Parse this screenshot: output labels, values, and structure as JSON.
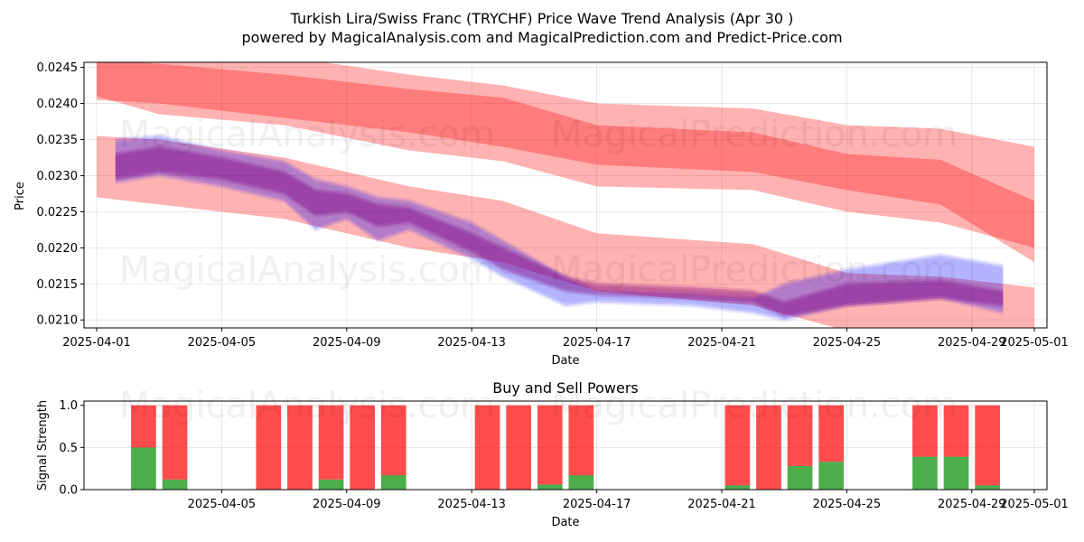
{
  "figure": {
    "title_line1": "Turkish Lira/Swiss Franc (TRYCHF) Price Wave Trend Analysis (Apr 30 )",
    "title_line2": "powered by MagicalAnalysis.com and MagicalPrediction.com and Predict-Price.com",
    "watermarks": [
      "MagicalAnalysis.com",
      "MagicalPrediction.com"
    ]
  },
  "colors": {
    "predicted_band": "#ff0000",
    "blue_band": "#0000ff",
    "purple_band": "#800080",
    "buy": "#2ca02c",
    "sell": "#ff0000",
    "grid": "#b0b0b0"
  },
  "chart_data": [
    {
      "type": "area",
      "title": "",
      "xlabel": "Date",
      "ylabel": "Price",
      "xlim": [
        "2025-03-31",
        "2025-05-01"
      ],
      "ylim": [
        0.02089,
        0.02457
      ],
      "grid": true,
      "x_ticks": [
        "2025-04-01",
        "2025-04-05",
        "2025-04-09",
        "2025-04-13",
        "2025-04-17",
        "2025-04-21",
        "2025-04-25",
        "2025-04-29",
        "2025-05-01"
      ],
      "y_ticks": [
        "0.0210",
        "0.0215",
        "0.0220",
        "0.0225",
        "0.0230",
        "0.0235",
        "0.0240",
        "0.0245"
      ],
      "bands": [
        {
          "color": "red",
          "opacity": 0.3,
          "x": [
            "2025-04-01",
            "2025-04-03",
            "2025-04-07",
            "2025-04-11",
            "2025-04-14",
            "2025-04-17",
            "2025-04-22",
            "2025-04-25",
            "2025-04-28",
            "2025-05-01"
          ],
          "upper": [
            0.02355,
            0.0235,
            0.02325,
            0.02285,
            0.02265,
            0.0222,
            0.02205,
            0.02165,
            0.0216,
            0.02145
          ],
          "lower": [
            0.0227,
            0.0226,
            0.0224,
            0.022,
            0.0218,
            0.0214,
            0.0212,
            0.02085,
            0.02075,
            0.0206
          ]
        },
        {
          "color": "red",
          "opacity": 0.3,
          "x": [
            "2025-04-01",
            "2025-04-03",
            "2025-04-07",
            "2025-04-11",
            "2025-04-14",
            "2025-04-17",
            "2025-04-22",
            "2025-04-25",
            "2025-04-28",
            "2025-05-01"
          ],
          "upper": [
            0.02485,
            0.0248,
            0.02465,
            0.0244,
            0.02425,
            0.024,
            0.02393,
            0.0237,
            0.02365,
            0.0234
          ],
          "lower": [
            0.02405,
            0.024,
            0.0238,
            0.0236,
            0.0234,
            0.02315,
            0.02305,
            0.0228,
            0.0226,
            0.0218
          ]
        },
        {
          "color": "red",
          "opacity": 0.3,
          "x": [
            "2025-04-01",
            "2025-04-03",
            "2025-04-07",
            "2025-04-11",
            "2025-04-14",
            "2025-04-17",
            "2025-04-22",
            "2025-04-25",
            "2025-04-28",
            "2025-05-01"
          ],
          "upper": [
            0.0246,
            0.02455,
            0.0244,
            0.0242,
            0.02408,
            0.0237,
            0.0236,
            0.0233,
            0.02322,
            0.02265
          ],
          "lower": [
            0.0241,
            0.02385,
            0.0237,
            0.02335,
            0.0232,
            0.02285,
            0.0228,
            0.0225,
            0.02235,
            0.022
          ]
        },
        {
          "color": "blue",
          "opacity": 0.15,
          "x": [
            "2025-04-01.6",
            "2025-04-03",
            "2025-04-05",
            "2025-04-07",
            "2025-04-08",
            "2025-04-09",
            "2025-04-10",
            "2025-04-11",
            "2025-04-13",
            "2025-04-14",
            "2025-04-16",
            "2025-04-17",
            "2025-04-20",
            "2025-04-22",
            "2025-04-23",
            "2025-04-25",
            "2025-04-28",
            "2025-04-30"
          ],
          "upper": [
            0.0235,
            0.02355,
            0.02335,
            0.0232,
            0.02295,
            0.02285,
            0.0227,
            0.02265,
            0.02235,
            0.0221,
            0.0216,
            0.0214,
            0.02135,
            0.0213,
            0.0215,
            0.0217,
            0.0219,
            0.02175
          ],
          "lower": [
            0.0229,
            0.023,
            0.02285,
            0.02265,
            0.02225,
            0.0224,
            0.0221,
            0.02225,
            0.02185,
            0.0216,
            0.0212,
            0.02125,
            0.0212,
            0.0211,
            0.021,
            0.0212,
            0.0213,
            0.0211
          ]
        },
        {
          "color": "purple",
          "opacity": 0.25,
          "x": [
            "2025-04-01.6",
            "2025-04-03",
            "2025-04-05",
            "2025-04-07",
            "2025-04-08",
            "2025-04-09",
            "2025-04-10",
            "2025-04-11",
            "2025-04-13",
            "2025-04-14",
            "2025-04-16",
            "2025-04-17",
            "2025-04-20",
            "2025-04-22",
            "2025-04-23",
            "2025-04-25",
            "2025-04-28",
            "2025-04-30"
          ],
          "upper": [
            0.0233,
            0.0234,
            0.02325,
            0.02305,
            0.0228,
            0.02275,
            0.0226,
            0.02255,
            0.0222,
            0.022,
            0.0216,
            0.0215,
            0.02145,
            0.0214,
            0.02125,
            0.0215,
            0.02155,
            0.0214
          ],
          "lower": [
            0.02295,
            0.02305,
            0.02295,
            0.02275,
            0.02245,
            0.0225,
            0.0223,
            0.02235,
            0.02195,
            0.0217,
            0.0214,
            0.02135,
            0.0213,
            0.02125,
            0.02105,
            0.0212,
            0.0213,
            0.0212
          ]
        }
      ]
    },
    {
      "type": "bar",
      "title": "Buy and Sell Powers",
      "xlabel": "Date",
      "ylabel": "Signal Strength",
      "xlim": [
        "2025-03-31",
        "2025-05-01"
      ],
      "ylim": [
        0,
        1.05
      ],
      "grid": true,
      "x_ticks": [
        "2025-04-05",
        "2025-04-09",
        "2025-04-13",
        "2025-04-17",
        "2025-04-21",
        "2025-04-25",
        "2025-04-29",
        "2025-05-01"
      ],
      "y_ticks": [
        "0.0",
        "0.5",
        "1.0"
      ],
      "series": [
        {
          "name": "",
          "color": "green",
          "dates": [
            "2025-04-02",
            "2025-04-03",
            "2025-04-06",
            "2025-04-07",
            "2025-04-08",
            "2025-04-09",
            "2025-04-10",
            "2025-04-13",
            "2025-04-14",
            "2025-04-15",
            "2025-04-16",
            "2025-04-21",
            "2025-04-22",
            "2025-04-23",
            "2025-04-24",
            "2025-04-27",
            "2025-04-28",
            "2025-04-29"
          ],
          "values": [
            0.5,
            0.12,
            0.0,
            0.0,
            0.12,
            0.0,
            0.17,
            0.0,
            0.0,
            0.06,
            0.17,
            0.05,
            0.0,
            0.28,
            0.33,
            0.39,
            0.39,
            0.05
          ]
        },
        {
          "name": "",
          "color": "red",
          "dates": [
            "2025-04-02",
            "2025-04-03",
            "2025-04-06",
            "2025-04-07",
            "2025-04-08",
            "2025-04-09",
            "2025-04-10",
            "2025-04-13",
            "2025-04-14",
            "2025-04-15",
            "2025-04-16",
            "2025-04-21",
            "2025-04-22",
            "2025-04-23",
            "2025-04-24",
            "2025-04-27",
            "2025-04-28",
            "2025-04-29"
          ],
          "values": [
            0.5,
            0.88,
            1.0,
            1.0,
            0.88,
            1.0,
            0.83,
            1.0,
            1.0,
            0.94,
            0.83,
            0.95,
            1.0,
            0.72,
            0.67,
            0.61,
            0.61,
            0.95
          ]
        }
      ]
    }
  ]
}
